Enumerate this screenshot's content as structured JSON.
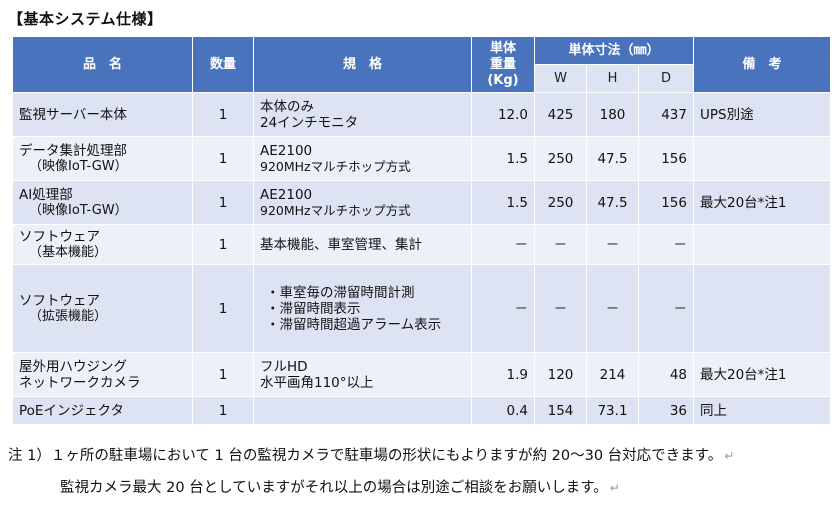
{
  "title": "【基本システム仕様】",
  "table": {
    "headers": {
      "name": "品　名",
      "qty": "数量",
      "spec": "規　格",
      "weight_line1": "単体",
      "weight_line2": "重量",
      "weight_line3": "(Kg)",
      "dims": "単体寸法（㎜）",
      "w": "W",
      "h": "H",
      "d": "D",
      "notes": "備　考"
    },
    "rows": [
      {
        "name1": "監視サーバー本体",
        "name2": "",
        "qty": "1",
        "spec": [
          "本体のみ",
          "24インチモニタ"
        ],
        "weight": "12.0",
        "w": "425",
        "h": "180",
        "d": "437",
        "note": "UPS別途"
      },
      {
        "name1": "データ集計処理部",
        "name2": "（映像IoT-GW）",
        "qty": "1",
        "spec": [
          "AE2100",
          "920MHzマルチホップ方式"
        ],
        "weight": "1.5",
        "w": "250",
        "h": "47.5",
        "d": "156",
        "note": ""
      },
      {
        "name1": "AI処理部",
        "name2": "（映像IoT-GW）",
        "qty": "1",
        "spec": [
          "AE2100",
          "920MHzマルチホップ方式"
        ],
        "weight": "1.5",
        "w": "250",
        "h": "47.5",
        "d": "156",
        "note": "最大20台*注1"
      },
      {
        "name1": "ソフトウェア",
        "name2": "（基本機能）",
        "qty": "1",
        "spec": [
          "基本機能、車室管理、集計"
        ],
        "weight": "－",
        "w": "－",
        "h": "－",
        "d": "－",
        "note": ""
      },
      {
        "name1": "ソフトウェア",
        "name2": "（拡張機能）",
        "qty": "1",
        "spec": [
          "・車室毎の滞留時間計測",
          "・滞留時間表示",
          "・滞留時間超過アラーム表示"
        ],
        "weight": "－",
        "w": "－",
        "h": "－",
        "d": "－",
        "note": ""
      },
      {
        "name1": "屋外用ハウジング",
        "name2": "ネットワークカメラ",
        "qty": "1",
        "spec": [
          "フルHD",
          "水平画角110°以上"
        ],
        "weight": "1.9",
        "w": "120",
        "h": "214",
        "d": "48",
        "note": "最大20台*注1"
      },
      {
        "name1": "PoEインジェクタ",
        "name2": "",
        "qty": "1",
        "spec": [
          ""
        ],
        "weight": "0.4",
        "w": "154",
        "h": "73.1",
        "d": "36",
        "note": "同上"
      }
    ]
  },
  "notes": {
    "line1": "注 1）１ヶ所の駐車場において 1 台の監視カメラで駐車場の形状にもよりますが約 20～30 台対応できます。",
    "line2": "監視カメラ最大 20 台としていますがそれ以上の場合は別途ご相談をお願いします。",
    "return_mark": "↵"
  }
}
